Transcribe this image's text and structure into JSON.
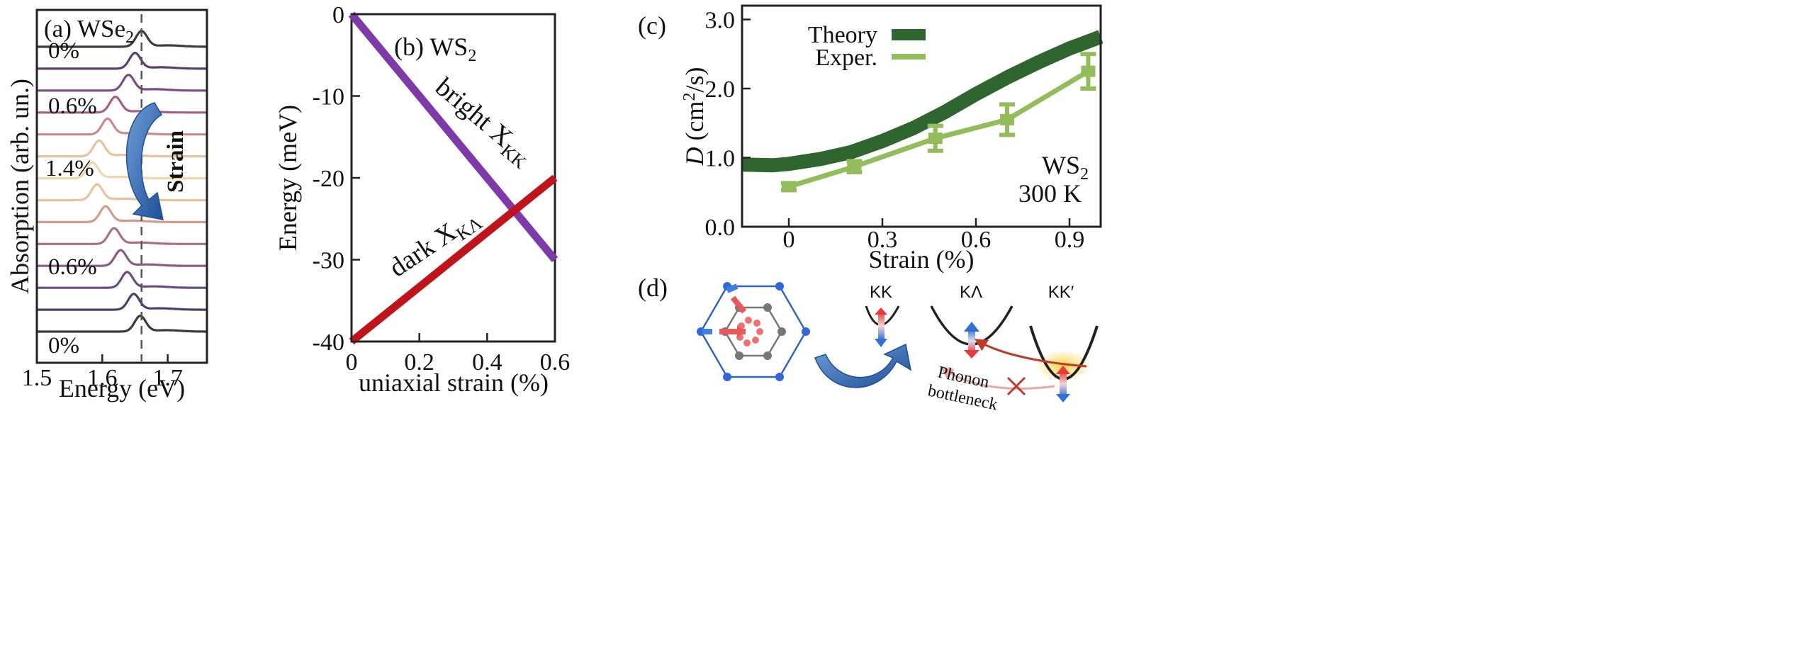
{
  "chart_data": [
    {
      "panel": "(a)",
      "type": "line",
      "title": "WSe",
      "title_sub": "2",
      "xlabel": "Energy (eV)",
      "ylabel": "Absorption (arb. un.)",
      "xlim": [
        1.5,
        1.76
      ],
      "x_ticks": [
        1.5,
        1.6,
        1.7
      ],
      "x_tick_labels": [
        "1.5",
        "1.6",
        "1.7"
      ],
      "reference_line_x": 1.66,
      "peak_positions_eV": [
        1.66,
        1.65,
        1.64,
        1.62,
        1.608,
        1.595,
        1.585,
        1.592,
        1.605,
        1.618,
        1.628,
        1.638,
        1.648,
        1.658
      ],
      "curve_colors": [
        "#3c3c3c",
        "#5a3f6e",
        "#7a4d80",
        "#a5607f",
        "#c98b86",
        "#e7c39d",
        "#f0d7a8",
        "#eac19a",
        "#d59a8b",
        "#a86f86",
        "#8a5a88",
        "#6b4b80",
        "#4f3f68",
        "#3a3a3a"
      ],
      "strain_labels": [
        "0%",
        "0.6%",
        "1.4%",
        "0.6%",
        "0%"
      ],
      "arrow_label": "Strain"
    },
    {
      "panel": "(b)",
      "type": "line",
      "title": "WS",
      "title_sub": "2",
      "xlabel": "uniaxial strain (%)",
      "ylabel": "Energy (meV)",
      "xlim": [
        0,
        0.6
      ],
      "ylim": [
        -40,
        0
      ],
      "x_ticks": [
        0,
        0.2,
        0.4,
        0.6
      ],
      "x_tick_labels": [
        "0",
        "0.2",
        "0.4",
        "0.6"
      ],
      "y_ticks": [
        0,
        -10,
        -20,
        -30,
        -40
      ],
      "y_tick_labels": [
        "0",
        "-10",
        "-20",
        "-30",
        "-40"
      ],
      "series": [
        {
          "name": "bright",
          "sub": "KK",
          "color": "#7d3aa8",
          "x": [
            0,
            0.6
          ],
          "y": [
            0,
            -30
          ]
        },
        {
          "name": "dark",
          "sub": "KΛ",
          "color": "#c0141b",
          "x": [
            0,
            0.6
          ],
          "y": [
            -40,
            -20
          ]
        }
      ],
      "series_letter": "X"
    },
    {
      "panel": "(c)",
      "type": "line",
      "xlabel": "Strain (%)",
      "ylabel_italic": "D",
      "ylabel_unit": "(cm",
      "ylabel_sup": "2",
      "ylabel_end": "/s)",
      "xlim": [
        -0.15,
        1.0
      ],
      "ylim": [
        0,
        3.2
      ],
      "x_ticks": [
        0,
        0.3,
        0.6,
        0.9
      ],
      "x_tick_labels": [
        "0",
        "0.3",
        "0.6",
        "0.9"
      ],
      "y_ticks": [
        0,
        1,
        2,
        3
      ],
      "y_tick_labels": [
        "0.0",
        "1.0",
        "2.0",
        "3.0"
      ],
      "legend": [
        "Theory",
        "Exper."
      ],
      "annotation_material": "WS",
      "annotation_sub": "2",
      "annotation_temp": "300 K",
      "series": [
        {
          "name": "Theory",
          "color": "#2f6630",
          "x": [
            -0.15,
            -0.05,
            0.0,
            0.1,
            0.2,
            0.3,
            0.4,
            0.5,
            0.6,
            0.7,
            0.8,
            0.9,
            1.0
          ],
          "y": [
            0.9,
            0.89,
            0.91,
            0.98,
            1.08,
            1.24,
            1.43,
            1.66,
            1.92,
            2.16,
            2.38,
            2.58,
            2.75
          ]
        },
        {
          "name": "Exper.",
          "color": "#92bd5a",
          "x": [
            0.0,
            0.21,
            0.47,
            0.7,
            0.96
          ],
          "y": [
            0.58,
            0.87,
            1.28,
            1.55,
            2.25
          ],
          "err": [
            0.05,
            0.08,
            0.18,
            0.22,
            0.25
          ]
        }
      ]
    },
    {
      "panel": "(d)",
      "type": "diagram",
      "valley_labels": [
        "KK",
        "KΛ",
        "KK′"
      ],
      "annotation": [
        "Phonon",
        "bottleneck"
      ]
    }
  ]
}
